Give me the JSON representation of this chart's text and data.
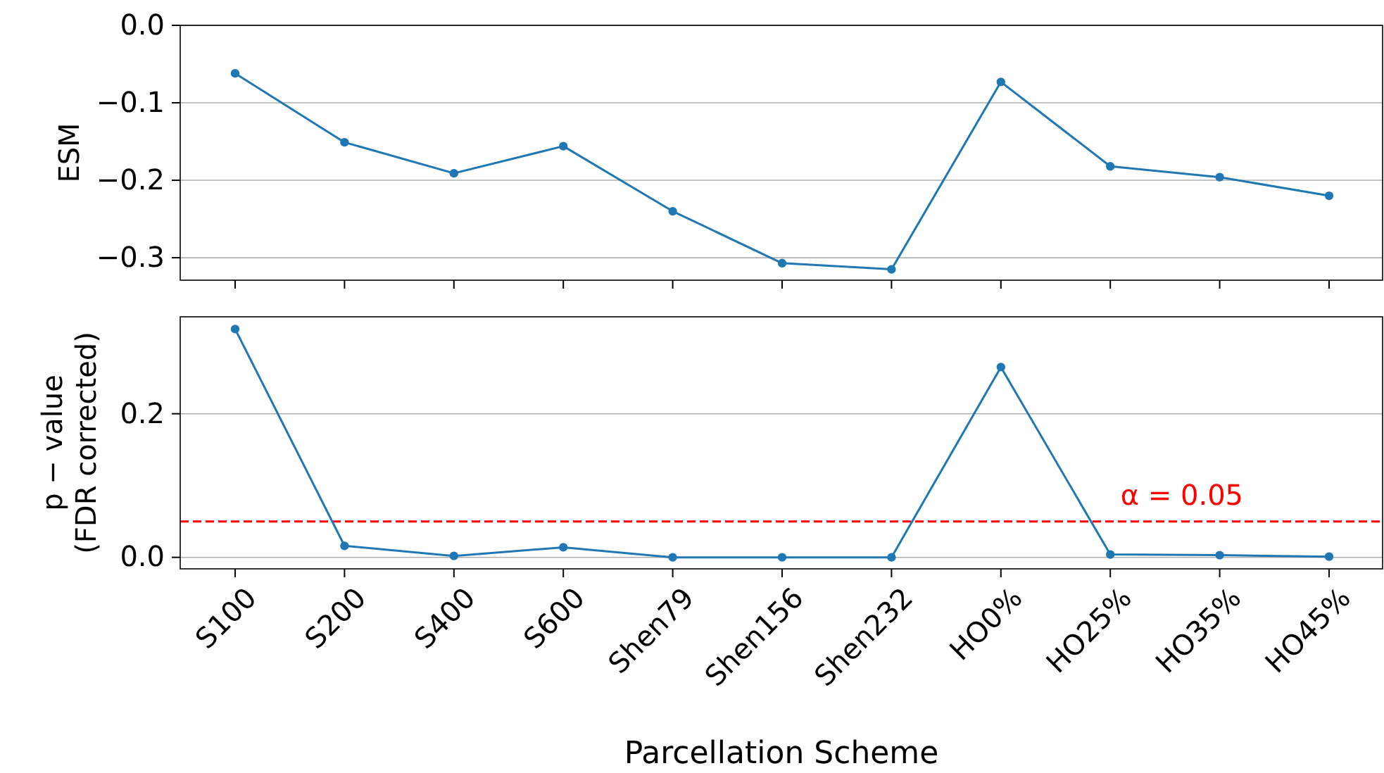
{
  "chart_data": [
    {
      "type": "line",
      "categories": [
        null,
        null,
        null,
        null,
        null,
        null,
        null,
        null,
        null,
        null,
        null
      ],
      "series": [
        {
          "color": "#1f77b4",
          "values": [
            -0.062,
            -0.151,
            -0.191,
            -0.156,
            -0.24,
            -0.307,
            -0.315,
            -0.073,
            -0.182,
            -0.196,
            -0.22
          ]
        }
      ],
      "ylabel": "ESM",
      "ylim": [
        -0.329,
        0.0
      ],
      "yticks": [
        {
          "value": -0.3,
          "label": "−0.3"
        },
        {
          "value": -0.2,
          "label": "−0.2"
        },
        {
          "value": -0.1,
          "label": "−0.1"
        },
        {
          "value": 0.0,
          "label": "0.0"
        }
      ],
      "grid": "y",
      "marker": "circle",
      "tick_labels": "y"
    },
    {
      "type": "line",
      "categories": [
        "S100",
        "S200",
        "S400",
        "S600",
        "Shen79",
        "Shen156",
        "Shen232",
        "HO0%",
        "HO25%",
        "HO35%",
        "HO45%"
      ],
      "series": [
        {
          "color": "#1f77b4",
          "values": [
            0.318,
            0.016,
            0.002,
            0.014,
            0.0,
            0.0,
            0.0,
            0.265,
            0.004,
            0.003,
            0.001
          ]
        }
      ],
      "ylabel": "p − value\n(FDR corrected)",
      "xlabel": "Parcellation Scheme",
      "ylim": [
        -0.016,
        0.335
      ],
      "yticks": [
        {
          "value": 0.0,
          "label": "0.0"
        },
        {
          "value": 0.2,
          "label": "0.2"
        }
      ],
      "grid": "y",
      "marker": "circle",
      "ref_lines": [
        {
          "axis": "y",
          "value": 0.05,
          "label": "α = 0.05",
          "color": "#ff0000",
          "line_style": "dashed"
        }
      ]
    }
  ]
}
